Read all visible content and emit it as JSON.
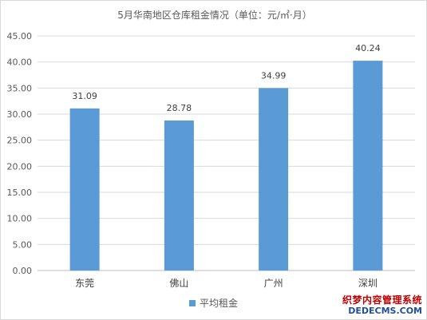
{
  "chart_data": {
    "type": "bar",
    "title": "5月华南地区仓库租金情况（单位：元/㎡·月）",
    "categories": [
      "东莞",
      "佛山",
      "广州",
      "深圳"
    ],
    "series": [
      {
        "name": "平均租金",
        "values": [
          31.09,
          28.78,
          34.99,
          40.24
        ],
        "color": "#5b9bd5"
      }
    ],
    "data_labels": [
      "31.09",
      "28.78",
      "34.99",
      "40.24"
    ],
    "yticks": [
      "0.00",
      "5.00",
      "10.00",
      "15.00",
      "20.00",
      "25.00",
      "30.00",
      "35.00",
      "40.00",
      "45.00"
    ],
    "ylim": [
      0,
      45
    ],
    "xlabel": "",
    "ylabel": "",
    "grid": true,
    "legend_position": "bottom"
  },
  "watermark": {
    "line1": "织梦内容管理系统",
    "line2": "DEDECMS.COM"
  }
}
